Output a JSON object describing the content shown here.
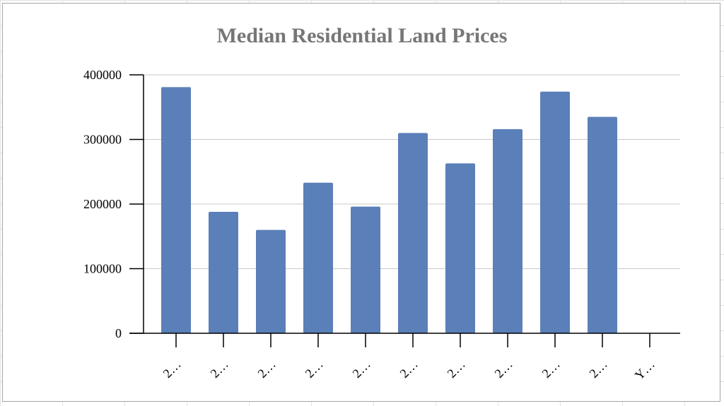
{
  "chart_data": {
    "type": "bar",
    "title": "Median Residential Land Prices",
    "xlabel": "",
    "ylabel": "",
    "categories": [
      "2…",
      "2…",
      "2…",
      "2…",
      "2…",
      "2…",
      "2…",
      "2…",
      "2…",
      "2…",
      "Y…"
    ],
    "values": [
      381000,
      188000,
      160000,
      233000,
      196000,
      310000,
      263000,
      316000,
      374000,
      335000,
      null
    ],
    "ylim": [
      0,
      400000
    ],
    "yticks": [
      "0",
      "100000",
      "200000",
      "300000",
      "400000"
    ],
    "grid": true,
    "legend": "none",
    "bar_color": "#5b7fb9"
  }
}
